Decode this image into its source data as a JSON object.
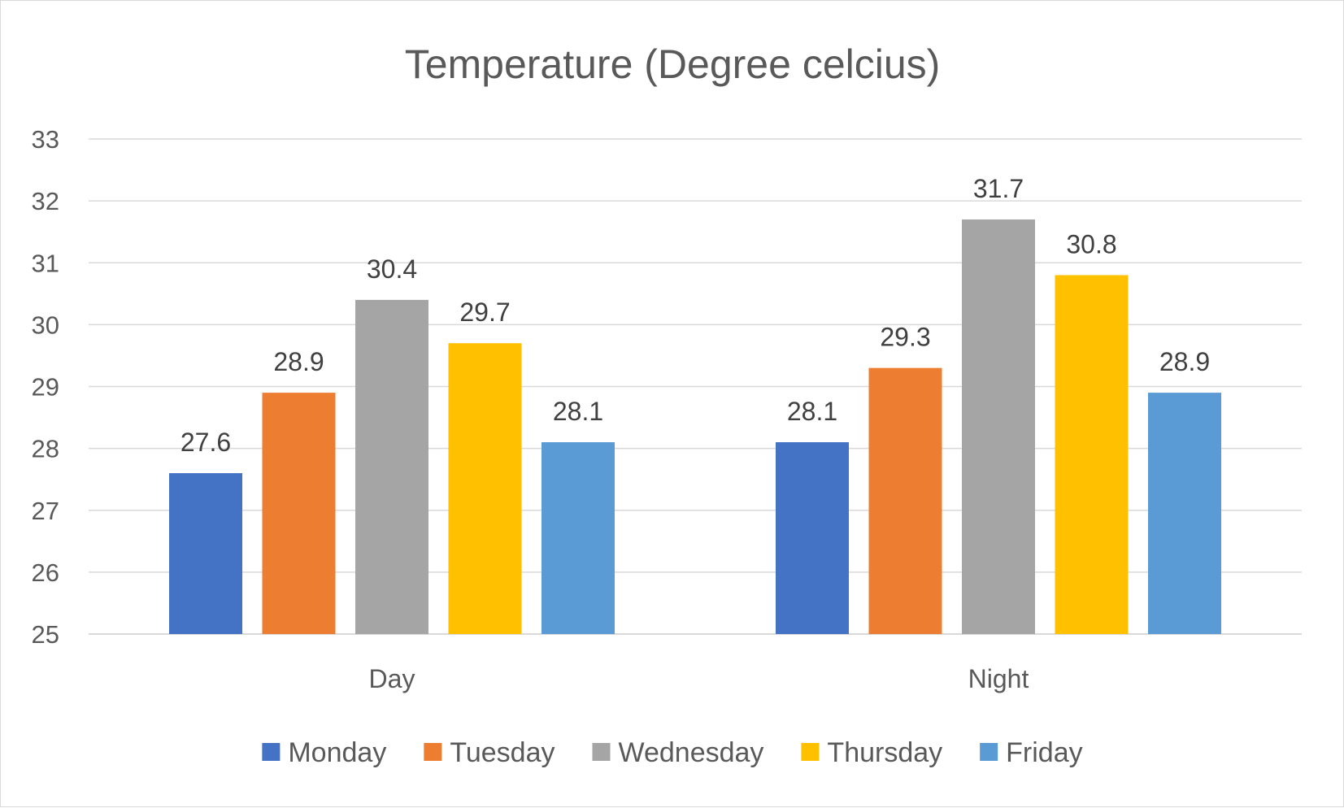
{
  "chart_data": {
    "type": "bar",
    "title": "Temperature (Degree celcius)",
    "xlabel": "",
    "ylabel": "",
    "categories": [
      "Day",
      "Night"
    ],
    "ylim": [
      25,
      33
    ],
    "yticks": [
      25,
      26,
      27,
      28,
      29,
      30,
      31,
      32,
      33
    ],
    "grid": true,
    "legend_position": "bottom",
    "series": [
      {
        "name": "Monday",
        "values": [
          27.6,
          28.1
        ],
        "color": "#4472C4"
      },
      {
        "name": "Tuesday",
        "values": [
          28.9,
          29.3
        ],
        "color": "#ED7D31"
      },
      {
        "name": "Wednesday",
        "values": [
          30.4,
          31.7
        ],
        "color": "#A5A5A5"
      },
      {
        "name": "Thursday",
        "values": [
          29.7,
          30.8
        ],
        "color": "#FFC000"
      },
      {
        "name": "Friday",
        "values": [
          28.1,
          28.9
        ],
        "color": "#5B9BD5"
      }
    ]
  }
}
